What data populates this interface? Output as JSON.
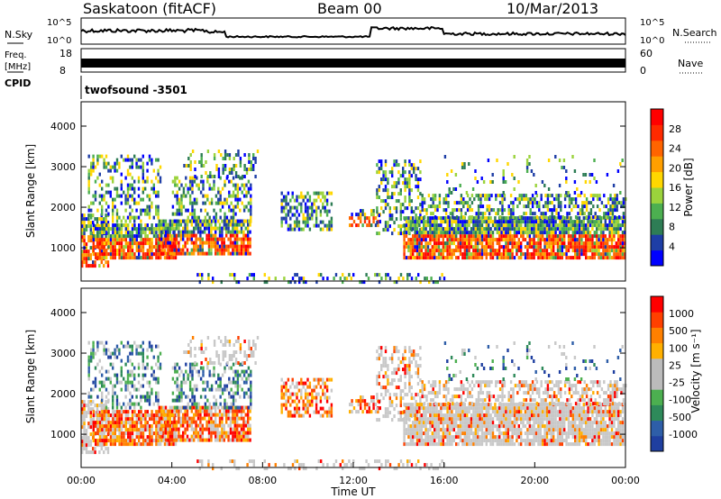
{
  "header": {
    "title": "Saskatoon (fitACF)",
    "beam": "Beam 00",
    "date": "10/Mar/2013"
  },
  "top_panels": {
    "nsky_label": "N.Sky",
    "nsearch_label": "N.Search",
    "nsky_ticks": [
      "10^5",
      "10^0"
    ],
    "nsearch_ticks": [
      "10^5",
      "10^0"
    ],
    "freq_label": "Freq.",
    "freq_unit": "[MHz]",
    "freq_ticks": [
      "18",
      "8"
    ],
    "nave_label": "Nave",
    "nave_ticks": [
      "60",
      "0"
    ],
    "cpid_label": "CPID",
    "cpid_text": "twofsound -3501"
  },
  "chart_data": [
    {
      "type": "heatmap",
      "panel": "power",
      "xlabel": "",
      "ylabel": "Slant Range [km]",
      "ylim": [
        180,
        4600
      ],
      "yticks": [
        1000,
        2000,
        3000,
        4000
      ],
      "colorbar_label": "Power [dB]",
      "colorbar_ticks": [
        "28",
        "24",
        "20",
        "16",
        "12",
        "8",
        "4"
      ],
      "colors": [
        "#0000ff",
        "#1e3ea6",
        "#2e7d55",
        "#4caf50",
        "#9bd33c",
        "#ffd700",
        "#ff9f00",
        "#ff6400",
        "#ff2a00",
        "#ff0000"
      ]
    },
    {
      "type": "heatmap",
      "panel": "velocity",
      "xlabel": "Time UT",
      "ylabel": "Slant Range [km]",
      "ylim": [
        180,
        4600
      ],
      "yticks": [
        1000,
        2000,
        3000,
        4000
      ],
      "xticks": [
        "00:00",
        "04:00",
        "08:00",
        "12:00",
        "16:00",
        "20:00",
        "00:00"
      ],
      "colorbar_label": "Velocity [m s⁻¹]",
      "colorbar_ticks": [
        "1000",
        "500",
        "100",
        "25",
        "-25",
        "-100",
        "-500",
        "-1000"
      ],
      "colors": [
        "#1f3fa0",
        "#2e5ea8",
        "#2e8a5a",
        "#4caf50",
        "#bbbbbb",
        "#bbbbbb",
        "#ffb000",
        "#ff8000",
        "#ff4000",
        "#ff0000"
      ]
    }
  ]
}
